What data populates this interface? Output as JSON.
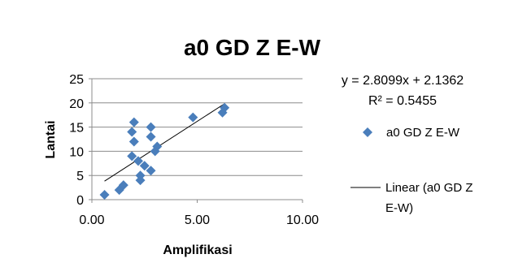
{
  "chart_data": {
    "type": "scatter",
    "title": "a0 GD Z E-W",
    "xlabel": "Amplifikasi",
    "ylabel": "Lantai",
    "xlim": [
      0,
      10
    ],
    "ylim": [
      0,
      25
    ],
    "x_ticks": [
      "0.00",
      "5.00",
      "10.00"
    ],
    "y_ticks": [
      "0",
      "5",
      "10",
      "15",
      "20",
      "25"
    ],
    "grid": "horizontal",
    "legend_position": "right",
    "series": [
      {
        "name": "a0 GD Z E-W",
        "marker": "diamond",
        "color": "#4A7EBB",
        "points": [
          {
            "x": 0.6,
            "y": 1
          },
          {
            "x": 1.3,
            "y": 2
          },
          {
            "x": 1.5,
            "y": 3
          },
          {
            "x": 2.3,
            "y": 4
          },
          {
            "x": 2.3,
            "y": 5
          },
          {
            "x": 2.8,
            "y": 6
          },
          {
            "x": 2.5,
            "y": 7
          },
          {
            "x": 2.2,
            "y": 8
          },
          {
            "x": 1.9,
            "y": 9
          },
          {
            "x": 3.0,
            "y": 10
          },
          {
            "x": 3.1,
            "y": 11
          },
          {
            "x": 2.0,
            "y": 12
          },
          {
            "x": 2.8,
            "y": 13
          },
          {
            "x": 1.9,
            "y": 14
          },
          {
            "x": 2.8,
            "y": 15
          },
          {
            "x": 2.0,
            "y": 16
          },
          {
            "x": 4.8,
            "y": 17
          },
          {
            "x": 6.2,
            "y": 18
          },
          {
            "x": 6.3,
            "y": 19
          }
        ]
      }
    ],
    "trendline": {
      "name": "Linear (a0 GD Z E-W)",
      "name_lines": [
        "Linear (a0 GD Z",
        "E-W)"
      ],
      "slope": 2.8099,
      "intercept": 2.1362,
      "x_range": [
        0.6,
        6.3
      ],
      "color": "#000000",
      "equation": "y = 2.8099x + 2.1362",
      "r2": "R² = 0.5455"
    }
  }
}
